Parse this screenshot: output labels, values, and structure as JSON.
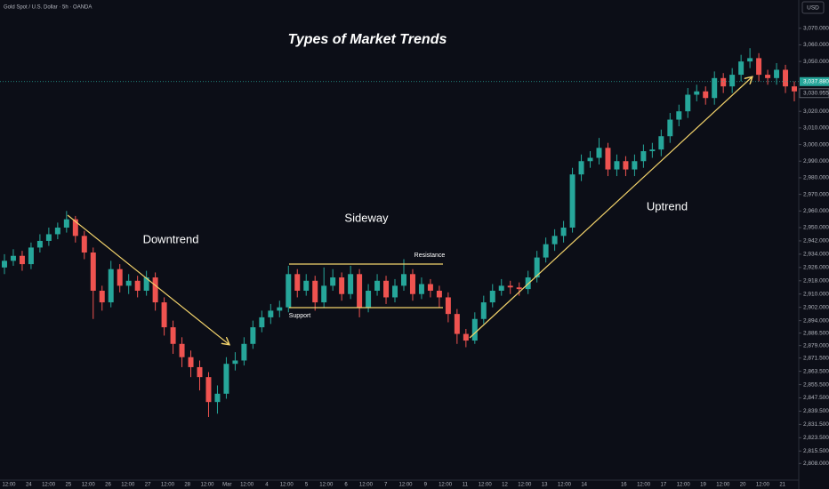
{
  "chart_data": {
    "type": "candlestick",
    "title": "Types of Market Trends",
    "source": "Gold Spot / U.S. Dollar · 5h · OANDA",
    "currency": "USD",
    "annotations": {
      "downtrend": "Downtrend",
      "sideway": "Sideway",
      "uptrend": "Uptrend",
      "resistance": "Resistance",
      "support": "Support"
    },
    "categories": [
      "12:00",
      "24",
      "12:00",
      "25",
      "12:00",
      "26",
      "12:00",
      "27",
      "12:00",
      "28",
      "12:00",
      "Mar",
      "12:00",
      "4",
      "12:00",
      "5",
      "12:00",
      "6",
      "12:00",
      "7",
      "12:00",
      "9",
      "12:00",
      "11",
      "12:00",
      "12",
      "12:00",
      "13",
      "12:00",
      "14",
      null,
      "16",
      "12:00",
      "17",
      "12:00",
      "19",
      "12:00",
      "20",
      "12:00",
      "21"
    ],
    "open": [
      2926,
      2930,
      2933,
      2928,
      2938,
      2942,
      2946,
      2950,
      2955,
      2945,
      2935,
      2912,
      2905,
      2925,
      2915,
      2918,
      2912,
      2920,
      2905,
      2890,
      2880,
      2872,
      2866,
      2860,
      2845,
      2850,
      2868,
      2870,
      2880,
      2890,
      2896,
      2900,
      2902,
      2922,
      2912,
      2918,
      2905,
      2915,
      2920,
      2910,
      2922,
      2902,
      2912,
      2918,
      2908,
      2915,
      2922,
      2910,
      2916,
      2912,
      2908,
      2898,
      2886,
      2882,
      2895,
      2905,
      2912,
      2915,
      2914,
      2913,
      2920,
      2932,
      2940,
      2945,
      2950,
      2982,
      2990,
      2992,
      2998,
      2985,
      2990,
      2985,
      2990,
      2996,
      2997,
      3005,
      3015,
      3020,
      3030,
      3032,
      3028,
      3040,
      3035,
      3042,
      3050,
      3052,
      3042,
      3040,
      3045,
      3035
    ],
    "high": [
      2934,
      2937,
      2936,
      2941,
      2946,
      2950,
      2953,
      2960,
      2957,
      2948,
      2938,
      2915,
      2930,
      2928,
      2922,
      2921,
      2924,
      2923,
      2908,
      2894,
      2884,
      2876,
      2870,
      2863,
      2855,
      2872,
      2875,
      2884,
      2894,
      2900,
      2904,
      2906,
      2927,
      2925,
      2922,
      2921,
      2926,
      2925,
      2923,
      2927,
      2925,
      2916,
      2922,
      2921,
      2919,
      2931,
      2925,
      2920,
      2919,
      2915,
      2911,
      2901,
      2889,
      2899,
      2909,
      2916,
      2919,
      2918,
      2917,
      2924,
      2936,
      2944,
      2949,
      2954,
      2986,
      2994,
      2996,
      3004,
      3001,
      2994,
      2993,
      2994,
      3000,
      3001,
      3009,
      3019,
      3024,
      3034,
      3036,
      3035,
      3044,
      3043,
      3046,
      3054,
      3058,
      3055,
      3045,
      3049,
      3048,
      3038
    ],
    "low": [
      2922,
      2927,
      2924,
      2925,
      2935,
      2939,
      2943,
      2947,
      2941,
      2931,
      2895,
      2900,
      2902,
      2911,
      2910,
      2908,
      2909,
      2900,
      2885,
      2874,
      2866,
      2860,
      2852,
      2836,
      2838,
      2847,
      2864,
      2867,
      2877,
      2887,
      2892,
      2896,
      2899,
      2908,
      2909,
      2900,
      2902,
      2912,
      2906,
      2907,
      2896,
      2899,
      2909,
      2904,
      2905,
      2912,
      2906,
      2907,
      2908,
      2902,
      2893,
      2880,
      2878,
      2880,
      2892,
      2902,
      2909,
      2910,
      2909,
      2910,
      2917,
      2929,
      2936,
      2941,
      2947,
      2978,
      2986,
      2988,
      2981,
      2981,
      2981,
      2981,
      2986,
      2992,
      2993,
      3001,
      3011,
      3016,
      3026,
      3024,
      3024,
      3031,
      3031,
      3038,
      3046,
      3038,
      3036,
      3036,
      3031,
      3026
    ],
    "close": [
      2930,
      2933,
      2928,
      2938,
      2942,
      2946,
      2950,
      2955,
      2945,
      2935,
      2912,
      2905,
      2925,
      2915,
      2918,
      2912,
      2920,
      2905,
      2890,
      2880,
      2872,
      2866,
      2860,
      2845,
      2850,
      2868,
      2870,
      2880,
      2890,
      2896,
      2900,
      2902,
      2922,
      2912,
      2918,
      2905,
      2915,
      2920,
      2910,
      2922,
      2902,
      2912,
      2918,
      2908,
      2915,
      2922,
      2910,
      2916,
      2912,
      2908,
      2898,
      2886,
      2882,
      2895,
      2905,
      2912,
      2915,
      2914,
      2913,
      2920,
      2932,
      2940,
      2945,
      2950,
      2982,
      2990,
      2992,
      2998,
      2985,
      2990,
      2985,
      2990,
      2996,
      2997,
      3005,
      3015,
      3020,
      3030,
      3032,
      3028,
      3040,
      3035,
      3042,
      3050,
      3052,
      3042,
      3040,
      3045,
      3035,
      3032
    ],
    "up_color": "#26a69a",
    "down_color": "#ef5350",
    "ylim": [
      2798,
      3087
    ],
    "yticks": [
      {
        "value": 3070,
        "label": "3,070.000"
      },
      {
        "value": 3060,
        "label": "3,060.000"
      },
      {
        "value": 3050,
        "label": "3,050.000"
      },
      {
        "value": 3020,
        "label": "3,020.000"
      },
      {
        "value": 3010,
        "label": "3,010.000"
      },
      {
        "value": 3000,
        "label": "3,000.000"
      },
      {
        "value": 2990,
        "label": "2,990.000"
      },
      {
        "value": 2980,
        "label": "2,980.000"
      },
      {
        "value": 2970,
        "label": "2,970.000"
      },
      {
        "value": 2960,
        "label": "2,960.000"
      },
      {
        "value": 2950,
        "label": "2,950.000"
      },
      {
        "value": 2942,
        "label": "2,942.000"
      },
      {
        "value": 2934,
        "label": "2,934.000"
      },
      {
        "value": 2926,
        "label": "2,926.000"
      },
      {
        "value": 2918,
        "label": "2,918.000"
      },
      {
        "value": 2910,
        "label": "2,910.000"
      },
      {
        "value": 2902,
        "label": "2,902.000"
      },
      {
        "value": 2894,
        "label": "2,894.000"
      },
      {
        "value": 2886.5,
        "label": "2,886.500"
      },
      {
        "value": 2879,
        "label": "2,879.000"
      },
      {
        "value": 2871.5,
        "label": "2,871.500"
      },
      {
        "value": 2863.5,
        "label": "2,863.500"
      },
      {
        "value": 2855.5,
        "label": "2,855.500"
      },
      {
        "value": 2847.5,
        "label": "2,847.500"
      },
      {
        "value": 2839.5,
        "label": "2,839.500"
      },
      {
        "value": 2831.5,
        "label": "2,831.500"
      },
      {
        "value": 2823.5,
        "label": "2,823.500"
      },
      {
        "value": 2815.5,
        "label": "2,815.500"
      },
      {
        "value": 2808,
        "label": "2,808.000"
      }
    ],
    "last_price": {
      "value": 3037.88,
      "label": "3,037.880"
    },
    "prev_close": {
      "value": 3030.955,
      "label": "3,030.955"
    }
  }
}
